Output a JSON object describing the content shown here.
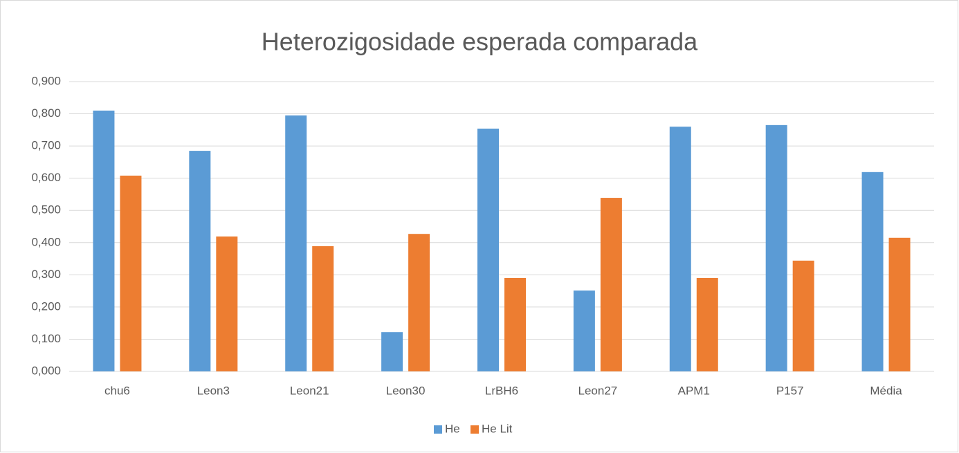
{
  "chart_data": {
    "type": "bar",
    "title": "Heterozigosidade esperada comparada",
    "categories": [
      "chu6",
      "Leon3",
      "Leon21",
      "Leon30",
      "LrBH6",
      "Leon27",
      "APM1",
      "P157",
      "Média"
    ],
    "series": [
      {
        "name": "He",
        "color": "#5b9bd5",
        "values": [
          0.81,
          0.685,
          0.795,
          0.122,
          0.754,
          0.251,
          0.76,
          0.765,
          0.619
        ]
      },
      {
        "name": "He Lit",
        "color": "#ed7d31",
        "values": [
          0.608,
          0.419,
          0.389,
          0.427,
          0.29,
          0.539,
          0.29,
          0.344,
          0.415
        ]
      }
    ],
    "ylim": [
      0,
      0.9
    ],
    "yticks": [
      {
        "value": 0,
        "label": "0,000"
      },
      {
        "value": 0.1,
        "label": "0,100"
      },
      {
        "value": 0.2,
        "label": "0,200"
      },
      {
        "value": 0.3,
        "label": "0,300"
      },
      {
        "value": 0.4,
        "label": "0,400"
      },
      {
        "value": 0.5,
        "label": "0,500"
      },
      {
        "value": 0.6,
        "label": "0,600"
      },
      {
        "value": 0.7,
        "label": "0,700"
      },
      {
        "value": 0.8,
        "label": "0,800"
      },
      {
        "value": 0.9,
        "label": "0,900"
      }
    ],
    "grid": true,
    "legend": "bottom"
  }
}
